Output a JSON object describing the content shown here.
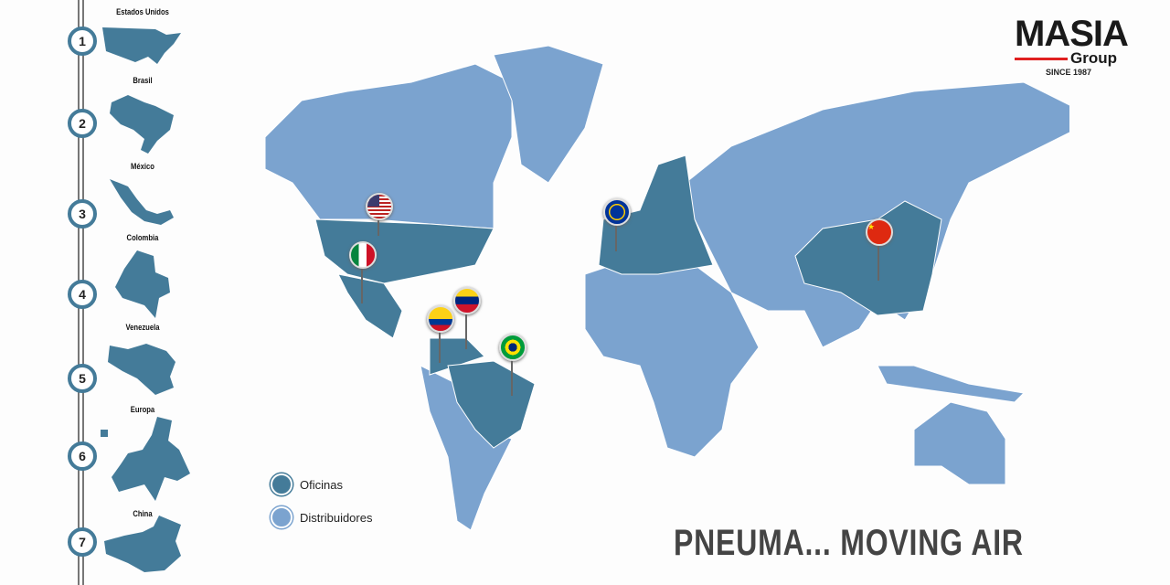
{
  "colors": {
    "oficinas": "#447b99",
    "distribuidores": "#7ba3cf",
    "rail": "#777777"
  },
  "sidebar": {
    "items": [
      {
        "number": "1",
        "label": "Estados Unidos"
      },
      {
        "number": "2",
        "label": "Brasil"
      },
      {
        "number": "3",
        "label": "México"
      },
      {
        "number": "4",
        "label": "Colombia"
      },
      {
        "number": "5",
        "label": "Venezuela"
      },
      {
        "number": "6",
        "label": "Europa"
      },
      {
        "number": "7",
        "label": "China"
      }
    ]
  },
  "logo": {
    "name": "MASIA",
    "sub": "Group",
    "since": "SINCE 1987"
  },
  "legend": {
    "oficinas": "Oficinas",
    "distribuidores": "Distribuidores"
  },
  "pins": [
    "usa-flag",
    "mexico-flag",
    "colombia-flag",
    "venezuela-flag",
    "brazil-flag",
    "eu-flag",
    "china-flag"
  ],
  "tagline": "PNEUMA... MOVING AIR"
}
